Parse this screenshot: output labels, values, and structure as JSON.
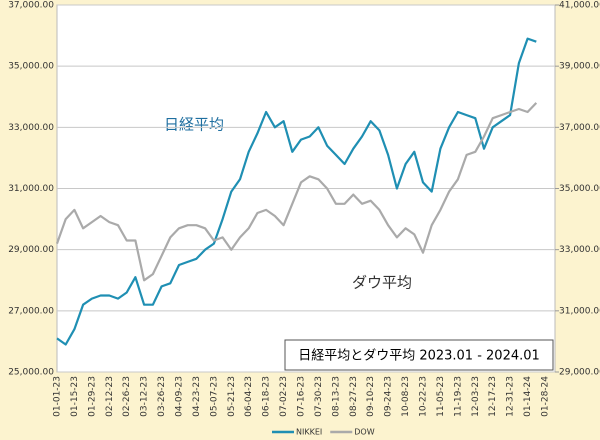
{
  "chart_data": {
    "type": "line",
    "title": "日経平均とダウ平均 2023.01 - 2024.01",
    "annotations": [
      "日経平均",
      "ダウ平均"
    ],
    "categories": [
      "01-01-23",
      null,
      "01-15-23",
      null,
      "01-29-23",
      null,
      "02-12-23",
      null,
      "02-26-23",
      null,
      "03-12-23",
      null,
      "03-26-23",
      null,
      "04-09-23",
      null,
      "04-23-23",
      null,
      "05-07-23",
      null,
      "05-21-23",
      null,
      "06-04-23",
      null,
      "06-18-23",
      null,
      "07-02-23",
      null,
      "07-16-23",
      null,
      "07-30-23",
      null,
      "08-13-23",
      null,
      "08-27-23",
      null,
      "09-10-23",
      null,
      "09-24-23",
      null,
      "10-08-23",
      null,
      "10-22-23",
      null,
      "11-05-23",
      null,
      "11-19-23",
      null,
      "12-03-23",
      null,
      "12-17-23",
      null,
      "12-31-23",
      null,
      "01-14-24",
      null,
      "01-28-24"
    ],
    "series": [
      {
        "name": "NIKKEI",
        "color": "#1f8fb3",
        "values": [
          26100,
          25900,
          26400,
          27200,
          27400,
          27500,
          27500,
          27400,
          27600,
          28100,
          27200,
          27200,
          27800,
          27900,
          28500,
          28600,
          28700,
          29000,
          29200,
          30000,
          30900,
          31300,
          32200,
          32800,
          33500,
          33000,
          33200,
          32200,
          32600,
          32700,
          33000,
          32400,
          32100,
          31800,
          32300,
          32700,
          33200,
          32900,
          32100,
          31000,
          31800,
          32200,
          31200,
          30900,
          32300,
          33000,
          33500,
          33400,
          33300,
          32300,
          33000,
          33200,
          33400,
          35100,
          35900,
          35800,
          null
        ]
      },
      {
        "name": "DOW",
        "color": "#aaaaaa",
        "axis": "y2",
        "values": [
          33200,
          34000,
          34300,
          33700,
          33900,
          34100,
          33900,
          33800,
          33300,
          33300,
          32000,
          32200,
          32800,
          33400,
          33700,
          33800,
          33800,
          33700,
          33300,
          33400,
          33000,
          33400,
          33700,
          34200,
          34300,
          34100,
          33800,
          34500,
          35200,
          35400,
          35300,
          35000,
          34500,
          34500,
          34800,
          34500,
          34600,
          34300,
          33800,
          33400,
          33700,
          33500,
          32900,
          33800,
          34300,
          34900,
          35300,
          36100,
          36200,
          36700,
          37300,
          37400,
          37500,
          37600,
          37500,
          37800,
          null
        ]
      }
    ],
    "ylim": [
      25000,
      37000
    ],
    "yticks": [
      {
        "value": 25000,
        "label": "25,000.00"
      },
      {
        "value": 27000,
        "label": "27,000.00"
      },
      {
        "value": 29000,
        "label": "29,000.00"
      },
      {
        "value": 31000,
        "label": "31,000.00"
      },
      {
        "value": 33000,
        "label": "33,000.00"
      },
      {
        "value": 35000,
        "label": "35,000.00"
      },
      {
        "value": 37000,
        "label": "37,000.00"
      }
    ],
    "y2lim": [
      29000,
      41000
    ],
    "y2ticks": [
      {
        "value": 29000,
        "label": "29,000.00"
      },
      {
        "value": 31000,
        "label": "31,000.00"
      },
      {
        "value": 33000,
        "label": "33,000.00"
      },
      {
        "value": 35000,
        "label": "35,000.00"
      },
      {
        "value": 37000,
        "label": "37,000.00"
      },
      {
        "value": 39000,
        "label": "39,000.00"
      },
      {
        "value": 41000,
        "label": "41,000.00"
      }
    ],
    "grid": true,
    "legend": "bottom"
  }
}
